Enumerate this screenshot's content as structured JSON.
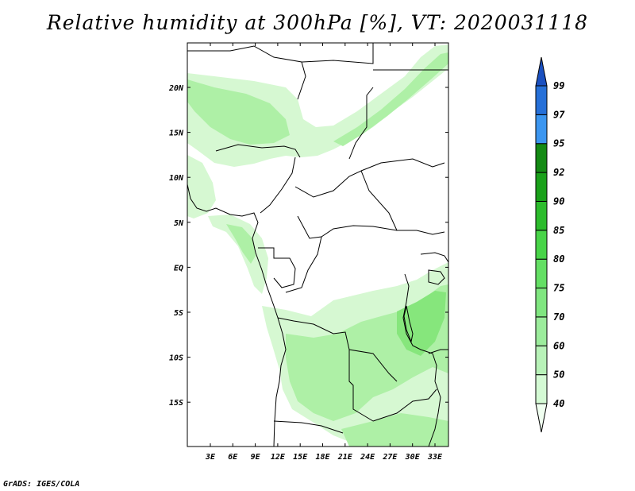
{
  "title": "Relative humidity at 300hPa [%], VT: 2020031118",
  "credit": "GrADS: IGES/COLA",
  "map": {
    "lon_labels": [
      "3E",
      "6E",
      "9E",
      "12E",
      "15E",
      "18E",
      "21E",
      "24E",
      "27E",
      "30E",
      "33E"
    ],
    "lat_labels": [
      "20N",
      "15N",
      "10N",
      "5N",
      "EQ",
      "5S",
      "10S",
      "15S"
    ]
  },
  "colorbar": {
    "labels": [
      "40",
      "50",
      "60",
      "70",
      "75",
      "80",
      "85",
      "90",
      "92",
      "95",
      "97",
      "99"
    ],
    "colors": [
      "#f0fff0",
      "#d4fad4",
      "#b8f2b8",
      "#9cec9c",
      "#80e680",
      "#64df64",
      "#48d448",
      "#2cbc2c",
      "#1aa11a",
      "#148a14",
      "#3c96f0",
      "#2670d8",
      "#1a50c0"
    ]
  },
  "palette": {
    "rh_light": "#d6f8d2",
    "rh_mid": "#aef0a6",
    "rh_strong": "#86e67c"
  }
}
